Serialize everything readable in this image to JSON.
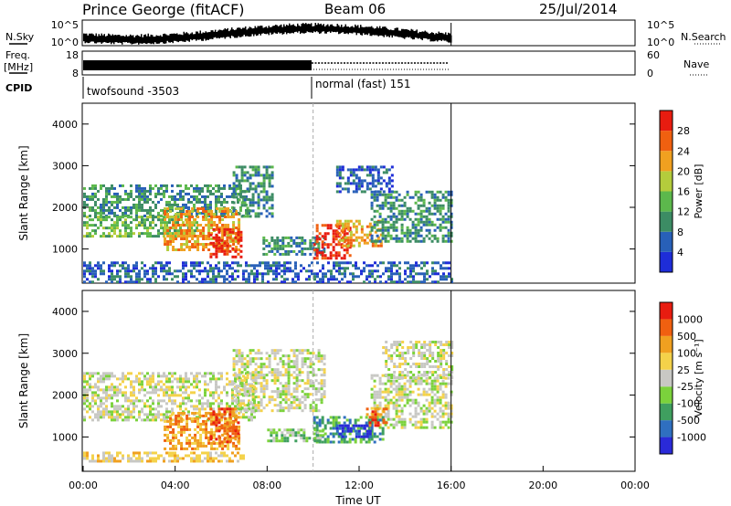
{
  "header": {
    "station": "Prince George (fitACF)",
    "beam": "Beam 06",
    "date": "25/Jul/2014"
  },
  "strip_labels": {
    "nsky": "N.Sky",
    "nsearch": "N.Search",
    "freq_line1": "Freq.",
    "freq_line2": "[MHz]",
    "nave": "Nave",
    "cpid": "CPID"
  },
  "strip_ticks": {
    "noise_top": "10^5",
    "noise_bottom": "10^0",
    "freq_top": "18",
    "freq_bottom": "8",
    "nave_top": "60",
    "nave_bottom": "0"
  },
  "cpid": {
    "before": "twofsound -3503",
    "after": "normal (fast) 151",
    "switch_hour": 10
  },
  "chart_data": [
    {
      "type": "heatmap",
      "name": "power",
      "ylabel": "Slant Range [km]",
      "xlabel": "",
      "xlim": [
        0,
        24
      ],
      "ylim": [
        180,
        4500
      ],
      "yticks": [
        1000,
        2000,
        3000,
        4000
      ],
      "xticks": [
        "00:00",
        "04:00",
        "08:00",
        "12:00",
        "16:00",
        "20:00",
        "00:00"
      ],
      "data_end_hour": 16,
      "colorbar": {
        "label": "Power [dB]",
        "ticks": [
          "4",
          "8",
          "12",
          "16",
          "20",
          "24",
          "28"
        ],
        "colors": [
          "#1e2dd8",
          "#2860b8",
          "#3c8c64",
          "#5cb84c",
          "#b4cc3c",
          "#f0a020",
          "#f06010",
          "#e81c10"
        ]
      },
      "regions": [
        {
          "t0": 0.0,
          "t1": 7.2,
          "r0": 1800,
          "r1": 2550,
          "level": 2
        },
        {
          "t0": 0.0,
          "t1": 5.0,
          "r0": 1300,
          "r1": 1800,
          "level": 3
        },
        {
          "t0": 3.5,
          "t1": 6.8,
          "r0": 1000,
          "r1": 2000,
          "level": 5
        },
        {
          "t0": 5.5,
          "t1": 6.9,
          "r0": 800,
          "r1": 1500,
          "level": 7
        },
        {
          "t0": 6.5,
          "t1": 8.2,
          "r0": 1800,
          "r1": 3000,
          "level": 2
        },
        {
          "t0": 7.8,
          "t1": 10.5,
          "r0": 900,
          "r1": 1300,
          "level": 2
        },
        {
          "t0": 10.0,
          "t1": 11.6,
          "r0": 800,
          "r1": 1600,
          "level": 7
        },
        {
          "t0": 11.0,
          "t1": 13.0,
          "r0": 1100,
          "r1": 1700,
          "level": 5
        },
        {
          "t0": 12.5,
          "t1": 16.0,
          "r0": 1200,
          "r1": 2400,
          "level": 2
        },
        {
          "t0": 11.0,
          "t1": 13.5,
          "r0": 2400,
          "r1": 3000,
          "level": 1
        },
        {
          "t0": 0.0,
          "t1": 16.0,
          "r0": 200,
          "r1": 700,
          "level": 1
        }
      ]
    },
    {
      "type": "heatmap",
      "name": "velocity",
      "ylabel": "Slant Range [km]",
      "xlabel": "Time UT",
      "xlim": [
        0,
        24
      ],
      "ylim": [
        180,
        4500
      ],
      "yticks": [
        1000,
        2000,
        3000,
        4000
      ],
      "xticks": [
        "00:00",
        "04:00",
        "08:00",
        "12:00",
        "16:00",
        "20:00",
        "00:00"
      ],
      "data_end_hour": 16,
      "colorbar": {
        "label": "Velocity [m s⁻¹]",
        "ticks": [
          "1000",
          "500",
          "100",
          "25",
          "-25",
          "-100",
          "-500",
          "-1000"
        ],
        "colors": [
          "#2a2ad8",
          "#2f6fc0",
          "#3f9f5f",
          "#7bd23c",
          "#c8c8c4",
          "#f4d24a",
          "#f0a020",
          "#f06010",
          "#e81c10"
        ]
      },
      "regions": [
        {
          "t0": 0.0,
          "t1": 7.5,
          "r0": 1400,
          "r1": 2550,
          "level": 4
        },
        {
          "t0": 6.5,
          "t1": 10.5,
          "r0": 1600,
          "r1": 3100,
          "level": 4
        },
        {
          "t0": 12.5,
          "t1": 16.0,
          "r0": 1200,
          "r1": 2500,
          "level": 4
        },
        {
          "t0": 13.0,
          "t1": 16.0,
          "r0": 2400,
          "r1": 3300,
          "level": 4
        },
        {
          "t0": 3.5,
          "t1": 6.8,
          "r0": 700,
          "r1": 1600,
          "level": 6
        },
        {
          "t0": 5.5,
          "t1": 6.7,
          "r0": 900,
          "r1": 1700,
          "level": 7
        },
        {
          "t0": 0.0,
          "t1": 7.0,
          "r0": 450,
          "r1": 650,
          "level": 5
        },
        {
          "t0": 10.0,
          "t1": 13.0,
          "r0": 900,
          "r1": 1500,
          "level": 2
        },
        {
          "t0": 11.0,
          "t1": 12.5,
          "r0": 1000,
          "r1": 1300,
          "level": 0
        },
        {
          "t0": 12.3,
          "t1": 13.2,
          "r0": 1300,
          "r1": 1700,
          "level": 7
        },
        {
          "t0": 8.0,
          "t1": 10.5,
          "r0": 900,
          "r1": 1200,
          "level": 3
        }
      ]
    }
  ]
}
